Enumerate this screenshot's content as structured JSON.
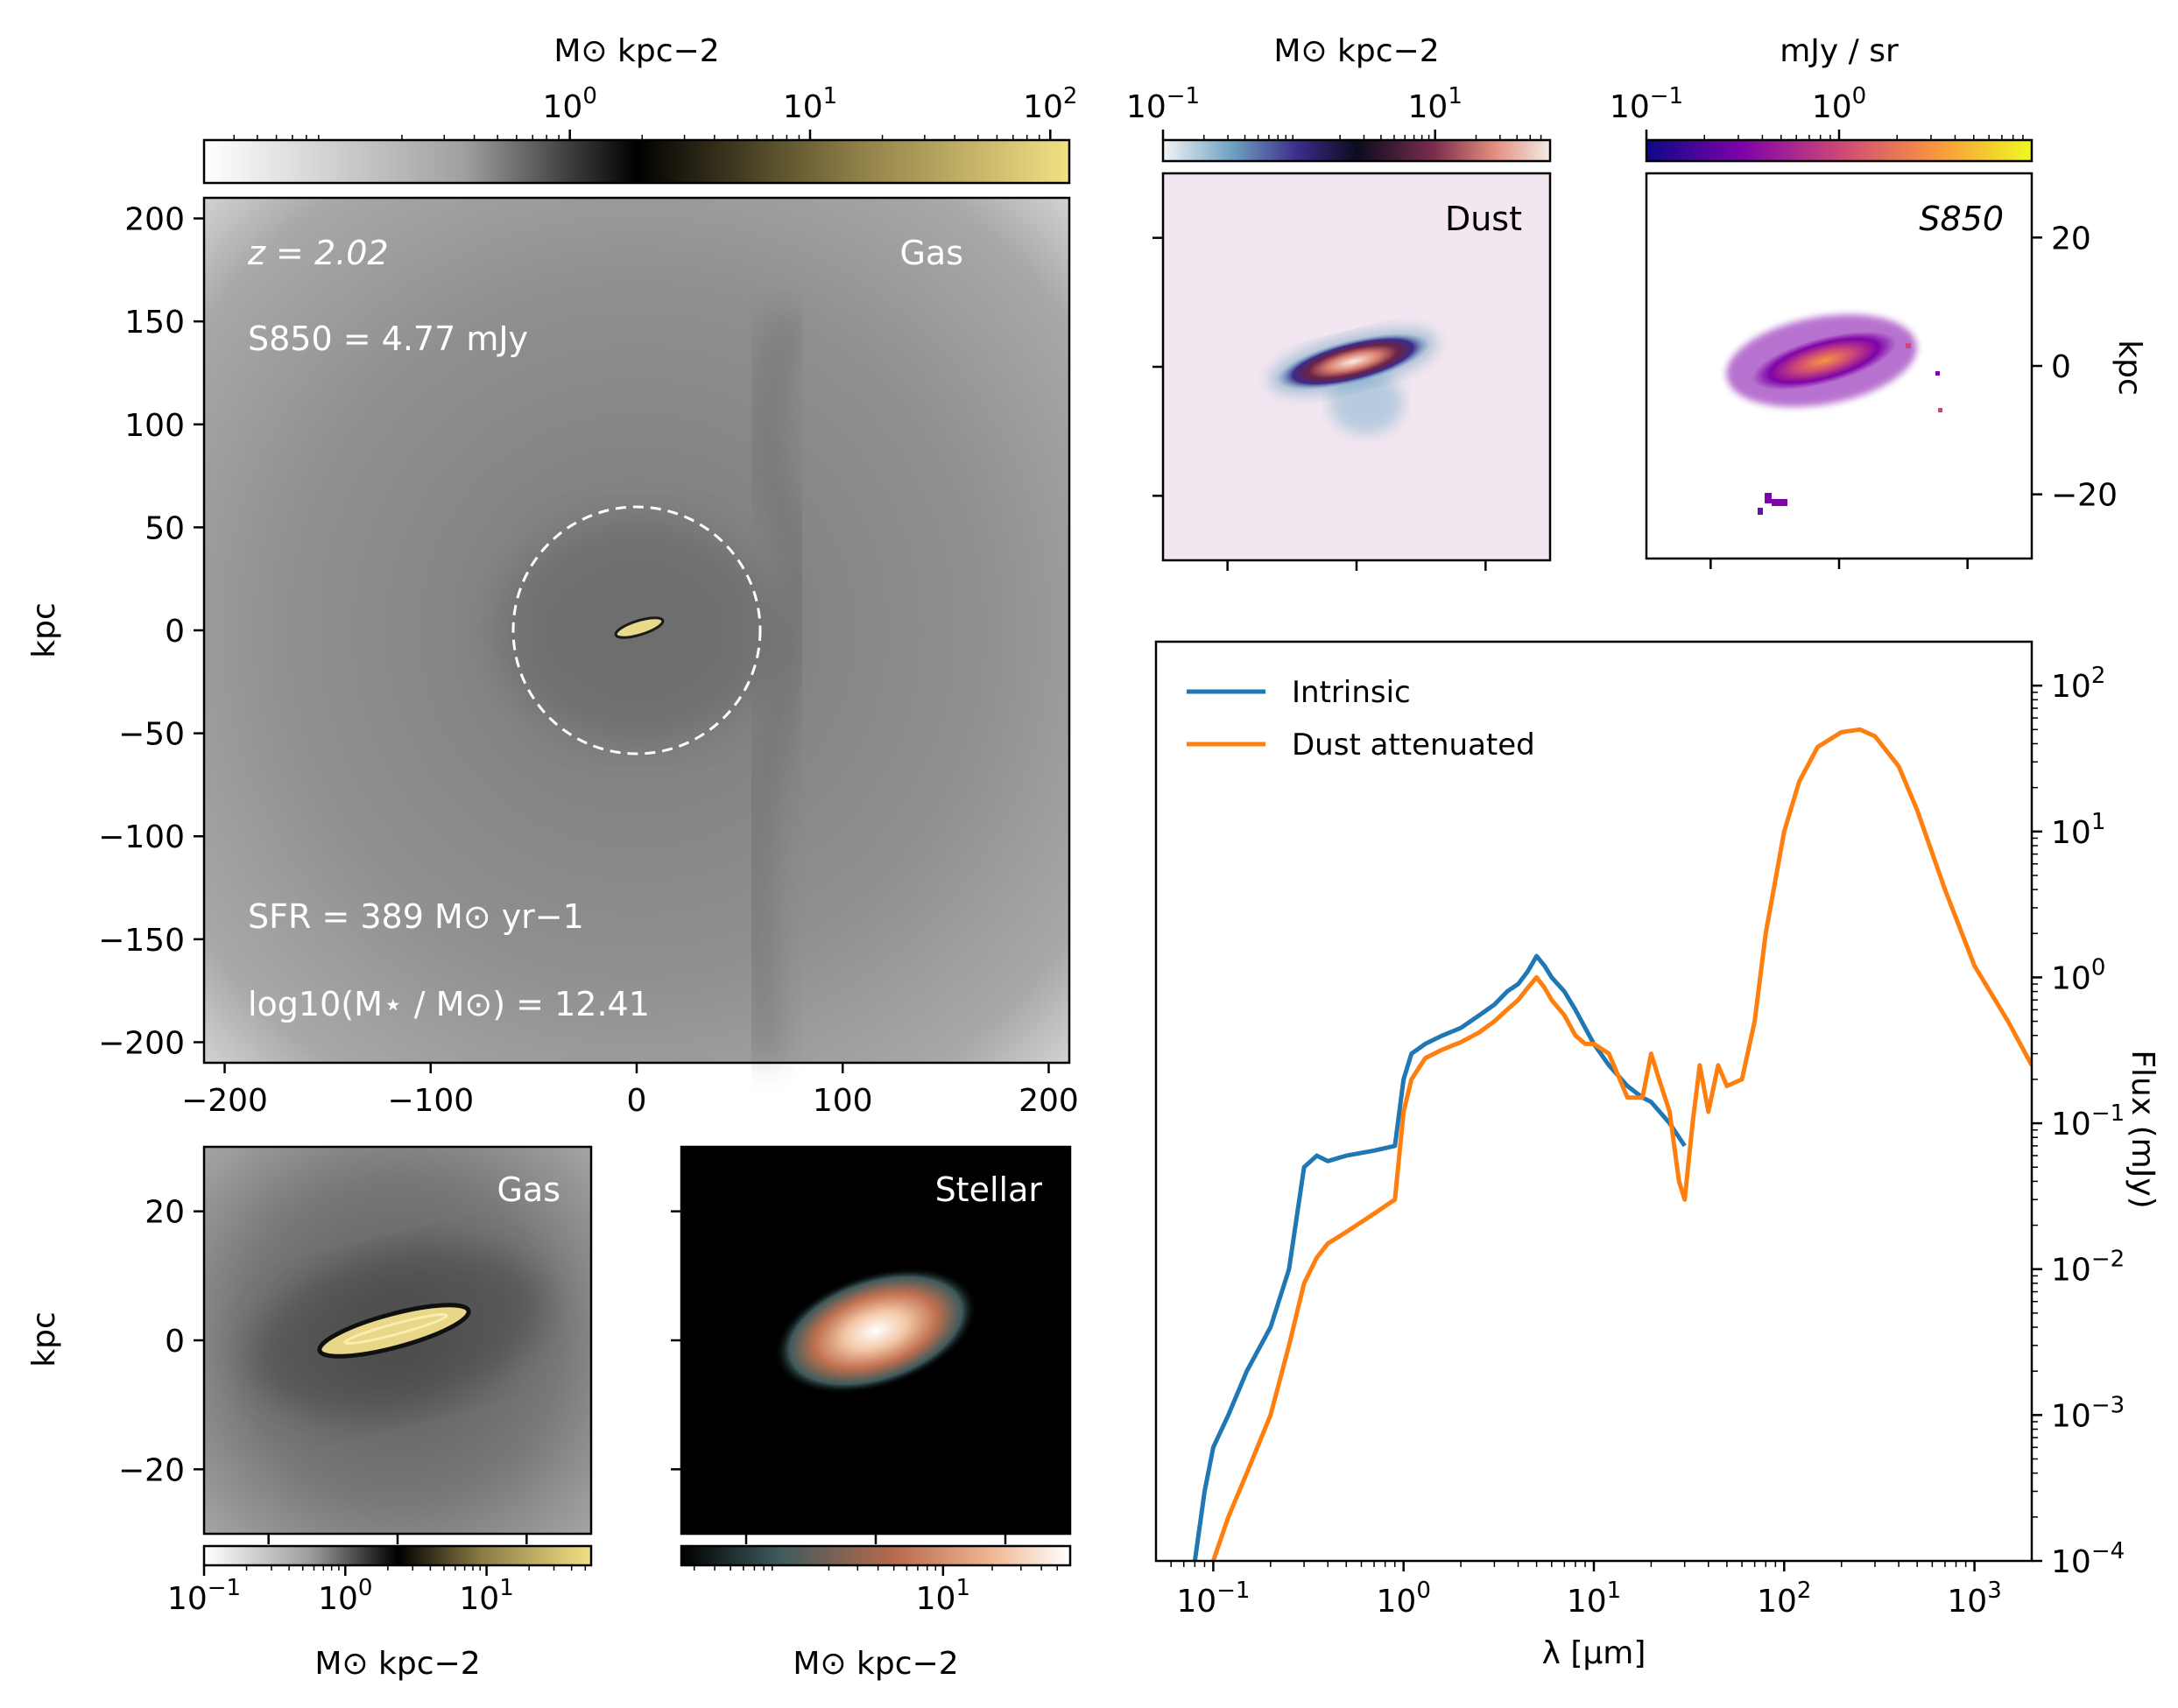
{
  "chart_data": [
    {
      "panel": "gas-map-large",
      "type": "heatmap",
      "labels": {
        "title": "Gas",
        "ylabel": "kpc"
      },
      "xlim": [
        -210,
        210
      ],
      "ylim": [
        -210,
        210
      ],
      "xticks": [
        -200,
        -100,
        0,
        100,
        200
      ],
      "xticklabels": [
        "−200",
        "−100",
        "0",
        "100",
        "200"
      ],
      "yticks": [
        -200,
        -150,
        -100,
        -50,
        0,
        50,
        100,
        150,
        200
      ],
      "yticklabels": [
        "−200",
        "−150",
        "−100",
        "−50",
        "0",
        "50",
        "100",
        "150",
        "200"
      ],
      "aperture_radius": 60,
      "annotations": {
        "redshift": "z = 2.02",
        "s850": "S850 = 4.77 mJy",
        "sfr": "SFR = 389 M⊙ yr−1",
        "mstar": "log10(M⋆ / M⊙) = 12.41"
      },
      "colorbar": {
        "label": "M⊙ kpc−2",
        "scale": "log",
        "range": [
          0.03,
          120
        ],
        "ticks": [
          1,
          10,
          100
        ],
        "ticklabels": [
          "10^0",
          "10^1",
          "10^2"
        ],
        "colors": [
          "#ffffff",
          "#8a8a8a",
          "#000000",
          "#9c8c50",
          "#f3e084"
        ]
      }
    },
    {
      "panel": "dust-map",
      "type": "heatmap",
      "labels": {
        "title": "Dust"
      },
      "xlim": [
        -30,
        30
      ],
      "ylim": [
        -30,
        30
      ],
      "colorbar": {
        "label": "M⊙ kpc−2",
        "scale": "log",
        "range": [
          0.1,
          70
        ],
        "ticks": [
          0.1,
          10
        ],
        "ticklabels": [
          "10^−1",
          "10^1"
        ],
        "colors": [
          "#f3f4f6",
          "#4b86b4",
          "#4b1d7a",
          "#0b0c1f",
          "#7a2d4d",
          "#e08a7a",
          "#f3ebe6"
        ]
      }
    },
    {
      "panel": "s850-map",
      "type": "heatmap",
      "labels": {
        "title": "S850",
        "ylabel": "kpc"
      },
      "xlim": [
        -30,
        30
      ],
      "ylim": [
        -30,
        30
      ],
      "yticks": [
        -20,
        0,
        20
      ],
      "yticklabels": [
        "−20",
        "0",
        "20"
      ],
      "colorbar": {
        "label": "mJy / sr",
        "scale": "log",
        "range": [
          0.1,
          10
        ],
        "ticks": [
          0.1,
          1
        ],
        "ticklabels": [
          "10^−1",
          "10^0"
        ],
        "colors": [
          "#0d0887",
          "#7e03a8",
          "#cc4778",
          "#f89540",
          "#f0f921"
        ]
      }
    },
    {
      "panel": "gas-map-zoom",
      "type": "heatmap",
      "labels": {
        "title": "Gas",
        "ylabel": "kpc"
      },
      "xlim": [
        -30,
        30
      ],
      "ylim": [
        -30,
        30
      ],
      "yticks": [
        -20,
        0,
        20
      ],
      "yticklabels": [
        "−20",
        "0",
        "20"
      ],
      "colorbar": {
        "label": "M⊙ kpc−2",
        "scale": "log",
        "range": [
          0.1,
          55
        ],
        "ticks": [
          0.1,
          1,
          10
        ],
        "ticklabels": [
          "10^−1",
          "10^0",
          "10^1"
        ],
        "colors": [
          "#ffffff",
          "#8a8a8a",
          "#000000",
          "#9c8c50",
          "#f3e084"
        ]
      }
    },
    {
      "panel": "stellar-map",
      "type": "heatmap",
      "labels": {
        "title": "Stellar"
      },
      "xlim": [
        -30,
        30
      ],
      "ylim": [
        -30,
        30
      ],
      "colorbar": {
        "label": "M⊙ kpc−2",
        "scale": "log",
        "range": [
          0.25,
          60
        ],
        "ticks": [
          10
        ],
        "ticklabels": [
          "10^1"
        ],
        "colors": [
          "#000000",
          "#3d5a5c",
          "#c0704f",
          "#f4c3a0",
          "#ffffff"
        ]
      }
    },
    {
      "panel": "sed",
      "type": "line",
      "xlabel": "λ [μm]",
      "ylabel": "Flux (mJy)",
      "xscale": "log",
      "yscale": "log",
      "xlim": [
        0.05,
        2000
      ],
      "ylim": [
        0.0001,
        200
      ],
      "xticks": [
        0.1,
        1,
        10,
        100,
        1000
      ],
      "xticklabels": [
        "10^−1",
        "10^0",
        "10^1",
        "10^2",
        "10^3"
      ],
      "yticks": [
        0.0001,
        0.001,
        0.01,
        0.1,
        1,
        10,
        100
      ],
      "yticklabels": [
        "10^−4",
        "10^−3",
        "10^−2",
        "10^−1",
        "10^0",
        "10^1",
        "10^2"
      ],
      "legend": "top-left",
      "series": [
        {
          "name": "Intrinsic",
          "color": "#1f77b4",
          "x": [
            0.08,
            0.09,
            0.1,
            0.12,
            0.15,
            0.2,
            0.25,
            0.3,
            0.35,
            0.4,
            0.5,
            0.7,
            0.9,
            1.0,
            1.1,
            1.3,
            1.6,
            2.0,
            2.5,
            3.0,
            3.5,
            4.0,
            4.5,
            5.0,
            5.5,
            6.0,
            7.0,
            8.0,
            9.0,
            10.0,
            12.0,
            15.0,
            18.0,
            20.0,
            25.0,
            30.0
          ],
          "y": [
            0.0001,
            0.0003,
            0.0006,
            0.001,
            0.002,
            0.004,
            0.01,
            0.05,
            0.06,
            0.055,
            0.06,
            0.065,
            0.07,
            0.2,
            0.3,
            0.35,
            0.4,
            0.45,
            0.55,
            0.65,
            0.8,
            0.9,
            1.1,
            1.4,
            1.2,
            1.0,
            0.8,
            0.6,
            0.45,
            0.35,
            0.25,
            0.18,
            0.15,
            0.14,
            0.1,
            0.07
          ]
        },
        {
          "name": "Dust attenuated",
          "color": "#ff7f0e",
          "x": [
            0.1,
            0.12,
            0.15,
            0.2,
            0.25,
            0.3,
            0.35,
            0.4,
            0.5,
            0.7,
            0.9,
            1.0,
            1.1,
            1.3,
            1.6,
            2.0,
            2.5,
            3.0,
            3.5,
            4.0,
            4.5,
            5.0,
            5.5,
            6.0,
            7.0,
            8.0,
            9.0,
            10.0,
            12.0,
            15.0,
            18.0,
            20.0,
            22.0,
            25.0,
            28.0,
            30.0,
            33.0,
            36.0,
            40.0,
            45.0,
            50.0,
            60.0,
            70.0,
            80.0,
            100.0,
            120.0,
            150.0,
            200.0,
            250.0,
            300.0,
            400.0,
            500.0,
            700.0,
            1000.0,
            1500.0,
            2000.0
          ],
          "y": [
            0.0001,
            0.0002,
            0.0004,
            0.001,
            0.003,
            0.008,
            0.012,
            0.015,
            0.018,
            0.024,
            0.03,
            0.12,
            0.2,
            0.28,
            0.32,
            0.36,
            0.42,
            0.5,
            0.6,
            0.7,
            0.85,
            1.0,
            0.85,
            0.7,
            0.55,
            0.4,
            0.35,
            0.35,
            0.3,
            0.15,
            0.15,
            0.3,
            0.2,
            0.12,
            0.04,
            0.03,
            0.1,
            0.25,
            0.12,
            0.25,
            0.18,
            0.2,
            0.5,
            2.0,
            10.0,
            22.0,
            38.0,
            48.0,
            50.0,
            45.0,
            28.0,
            14.0,
            4.0,
            1.2,
            0.5,
            0.25
          ]
        }
      ]
    }
  ]
}
